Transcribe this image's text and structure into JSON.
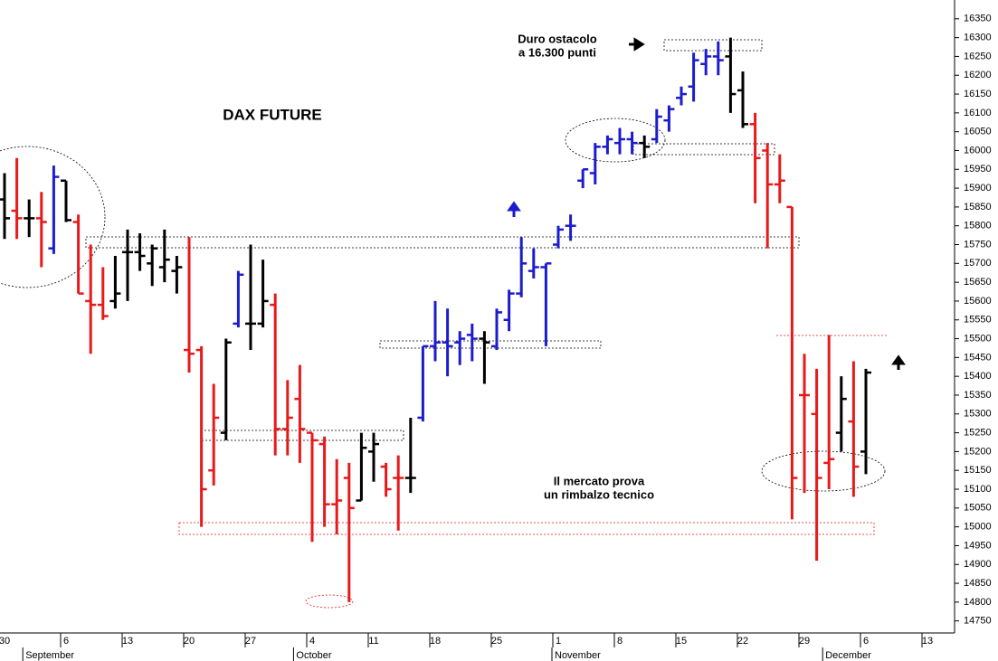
{
  "chart_data": {
    "type": "ohlc",
    "title": "DAX FUTURE",
    "annotations": [
      "Duro ostacolo",
      "a 16.300 punti",
      "Il mercato prova",
      "un rimbalzo tecnico"
    ],
    "categories": [
      "30",
      null,
      null,
      null,
      null,
      "6",
      null,
      null,
      null,
      null,
      "13",
      null,
      null,
      null,
      null,
      "20",
      null,
      null,
      null,
      null,
      "27",
      null,
      null,
      null,
      null,
      "4",
      null,
      null,
      null,
      null,
      "11",
      null,
      null,
      null,
      null,
      "18",
      null,
      null,
      null,
      null,
      "25",
      null,
      null,
      null,
      null,
      "1",
      null,
      null,
      null,
      null,
      "8",
      null,
      null,
      null,
      null,
      "15",
      null,
      null,
      null,
      null,
      "22",
      null,
      null,
      null,
      null,
      "29",
      null,
      null,
      null,
      null,
      "6",
      null,
      null,
      null,
      null,
      "13"
    ],
    "months": [
      {
        "label": "September",
        "start": 2
      },
      {
        "label": "October",
        "start": 24
      },
      {
        "label": "November",
        "start": 45
      },
      {
        "label": "December",
        "start": 67
      }
    ],
    "open": [
      15870,
      15840,
      15820,
      15820,
      15740,
      15920,
      15810,
      15600,
      15590,
      15600,
      15730,
      15730,
      15700,
      15690,
      15680,
      15470,
      15470,
      15150,
      15250,
      15540,
      15540,
      15540,
      15590,
      15260,
      15340,
      15250,
      15220,
      15060,
      15130,
      15070,
      15200,
      15160,
      15130,
      15130,
      15290,
      15480,
      15490,
      15490,
      15510,
      15500,
      15480,
      15550,
      15620,
      15680,
      15690,
      15750,
      15800,
      15920,
      15940,
      16010,
      16020,
      16030,
      16020,
      16030,
      16080,
      16140,
      16170,
      16230,
      16250,
      16250,
      16160,
      16070,
      16000,
      15910,
      15850,
      15350,
      15300,
      15170,
      15250,
      15280,
      15200,
      null,
      null,
      null,
      null,
      null
    ],
    "high": [
      15940,
      15980,
      15870,
      15890,
      15960,
      15920,
      15830,
      15750,
      15690,
      15720,
      15790,
      15780,
      15750,
      15790,
      15720,
      15770,
      15480,
      15380,
      15500,
      15680,
      15750,
      15710,
      15620,
      15390,
      15430,
      15250,
      15240,
      15180,
      15170,
      15250,
      15250,
      15170,
      15190,
      15290,
      15480,
      15600,
      15580,
      15520,
      15540,
      15520,
      15580,
      15630,
      15770,
      15740,
      15700,
      15800,
      15830,
      15950,
      16020,
      16040,
      16060,
      16050,
      16040,
      16110,
      16120,
      16170,
      16260,
      16270,
      16290,
      16300,
      16210,
      16100,
      16020,
      15990,
      15850,
      15460,
      15420,
      15510,
      15400,
      15440,
      15420,
      null,
      null,
      null,
      null,
      null
    ],
    "low": [
      15765,
      15765,
      15770,
      15690,
      15725,
      15810,
      15620,
      15460,
      15550,
      15580,
      15600,
      15680,
      15640,
      15650,
      15620,
      15410,
      15000,
      15110,
      15230,
      15530,
      15470,
      15530,
      15190,
      15190,
      15170,
      14960,
      15000,
      14980,
      14800,
      15070,
      15120,
      15080,
      14990,
      15090,
      15280,
      15440,
      15400,
      15430,
      15440,
      15380,
      15470,
      15520,
      15610,
      15660,
      15480,
      15740,
      15760,
      15900,
      15910,
      15990,
      15990,
      15990,
      15980,
      16020,
      16050,
      16120,
      16130,
      16200,
      16200,
      16100,
      16060,
      15860,
      15740,
      15860,
      15020,
      15090,
      14910,
      15100,
      15200,
      15080,
      15140,
      null,
      null,
      null,
      null,
      null
    ],
    "close": [
      15820,
      15820,
      15820,
      15810,
      15930,
      15815,
      15620,
      15590,
      15560,
      15620,
      15730,
      15720,
      15740,
      15710,
      15690,
      15460,
      15100,
      15290,
      15490,
      15670,
      15540,
      15600,
      15260,
      15290,
      15260,
      15230,
      15060,
      15070,
      15050,
      15210,
      15220,
      15100,
      15130,
      15130,
      15480,
      15490,
      15480,
      15500,
      15500,
      15490,
      15570,
      15620,
      15700,
      15690,
      15700,
      15790,
      15800,
      15950,
      16010,
      16030,
      16030,
      16020,
      16010,
      16090,
      16110,
      16150,
      16240,
      16250,
      16240,
      16150,
      16070,
      15980,
      15910,
      15920,
      15130,
      15350,
      15130,
      15180,
      15340,
      15160,
      15410,
      null,
      null,
      null,
      null,
      null
    ],
    "colors": [
      "#000000",
      "#e8191b",
      "#000000",
      "#e8191b",
      "#1c1ccc",
      "#000000",
      "#e8191b",
      "#e8191b",
      "#e8191b",
      "#000000",
      "#000000",
      "#000000",
      "#000000",
      "#000000",
      "#000000",
      "#e8191b",
      "#e8191b",
      "#e8191b",
      "#000000",
      "#1c1ccc",
      "#000000",
      "#000000",
      "#e8191b",
      "#e8191b",
      "#e8191b",
      "#e8191b",
      "#e8191b",
      "#e8191b",
      "#e8191b",
      "#000000",
      "#000000",
      "#e8191b",
      "#e8191b",
      "#000000",
      "#1c1ccc",
      "#1c1ccc",
      "#1c1ccc",
      "#1c1ccc",
      "#1c1ccc",
      "#000000",
      "#1c1ccc",
      "#1c1ccc",
      "#1c1ccc",
      "#1c1ccc",
      "#1c1ccc",
      "#1c1ccc",
      "#1c1ccc",
      "#1c1ccc",
      "#1c1ccc",
      "#1c1ccc",
      "#1c1ccc",
      "#1c1ccc",
      "#000000",
      "#1c1ccc",
      "#1c1ccc",
      "#1c1ccc",
      "#1c1ccc",
      "#1c1ccc",
      "#1c1ccc",
      "#000000",
      "#000000",
      "#e8191b",
      "#e8191b",
      "#e8191b",
      "#e8191b",
      "#e8191b",
      "#e8191b",
      "#e8191b",
      "#000000",
      "#e8191b",
      "#000000",
      null,
      null,
      null,
      null,
      null
    ],
    "ylim": [
      14718,
      16400
    ],
    "yticks": [
      14750,
      14800,
      14850,
      14900,
      14950,
      15000,
      15050,
      15100,
      15150,
      15200,
      15250,
      15300,
      15350,
      15400,
      15450,
      15500,
      15550,
      15600,
      15650,
      15700,
      15750,
      15800,
      15850,
      15900,
      15950,
      16000,
      16050,
      16100,
      16150,
      16200,
      16250,
      16300,
      16350
    ],
    "grid": false
  }
}
